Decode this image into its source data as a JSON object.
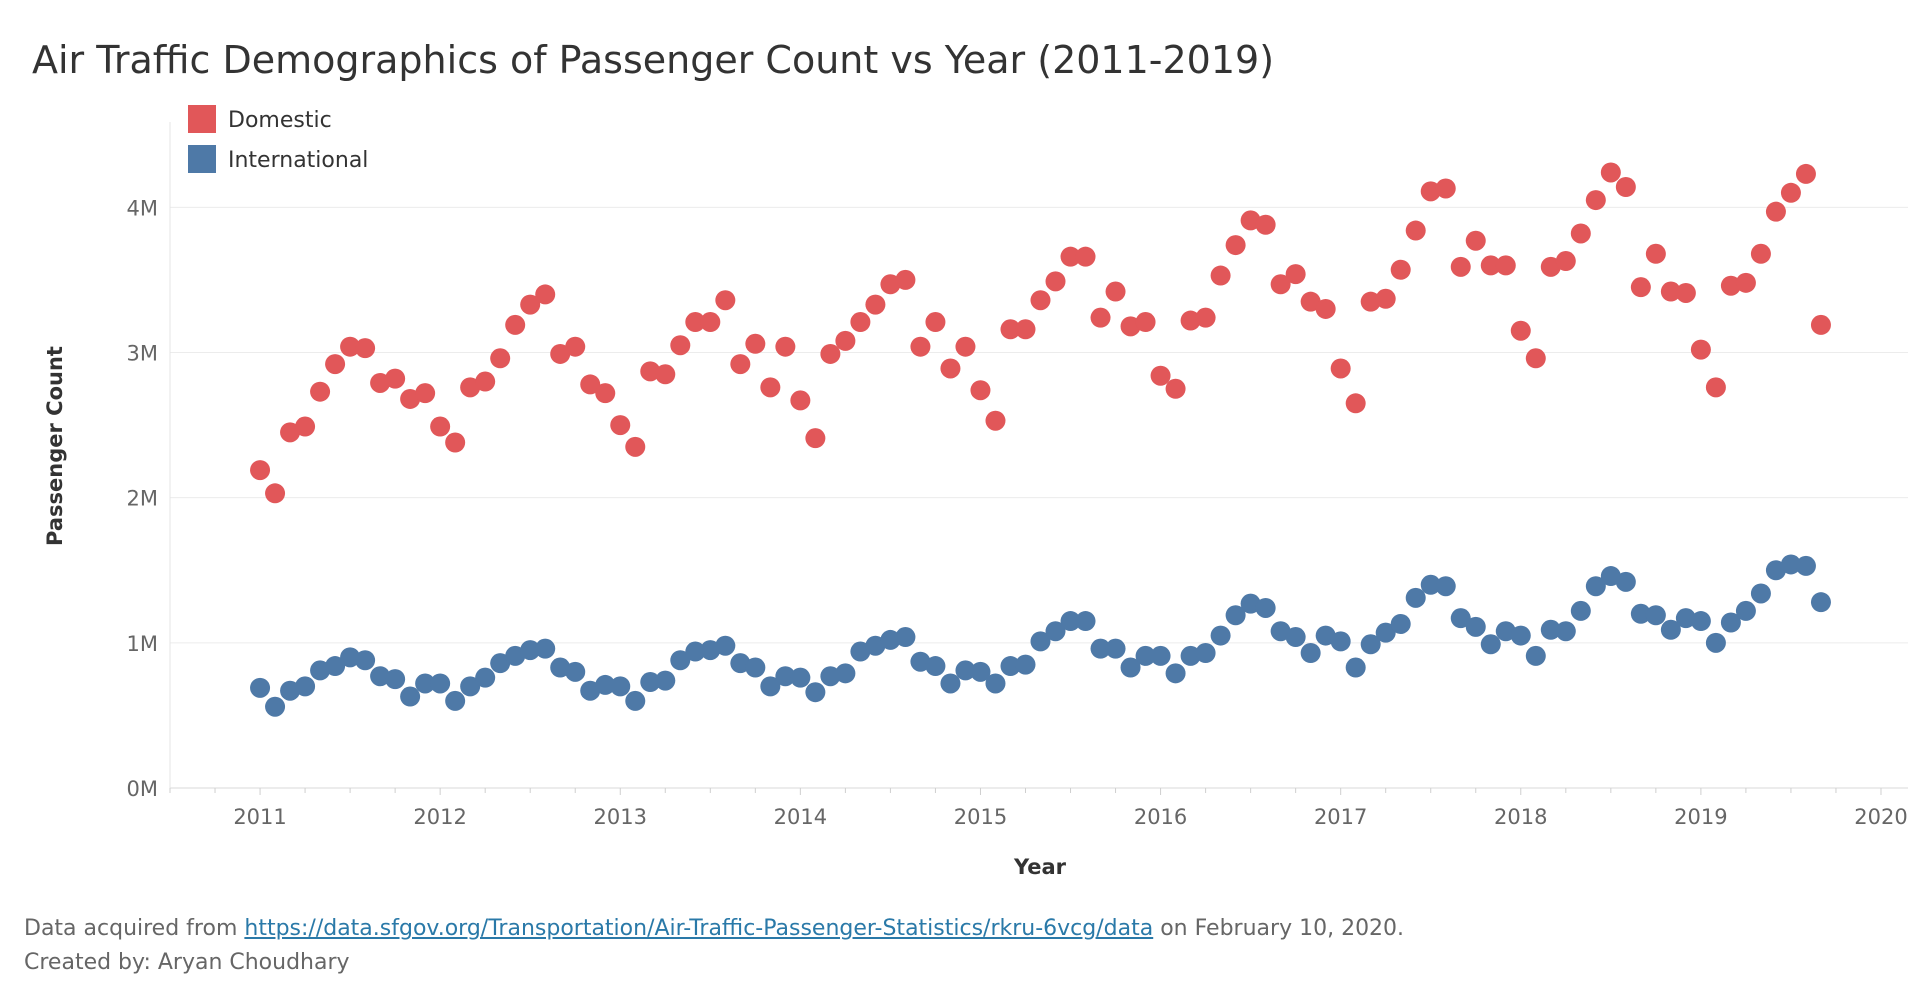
{
  "title": "Air Traffic Demographics of Passenger Count vs Year (2011-2019)",
  "footer": {
    "prefix": "Data acquired from ",
    "link_text": "https://data.sfgov.org/Transportation/Air-Traffic-Passenger-Statistics/rkru-6vcg/data",
    "suffix": " on February 10, 2020.",
    "credit": "Created by: Aryan Choudhary"
  },
  "chart_data": {
    "type": "scatter",
    "xlabel": "Year",
    "ylabel": "Passenger Count",
    "xlim": [
      2010.5,
      2020.15
    ],
    "ylim": [
      0,
      4.45
    ],
    "x_ticks": [
      2011,
      2012,
      2013,
      2014,
      2015,
      2016,
      2017,
      2018,
      2019,
      2020
    ],
    "x_tick_labels": [
      "2011",
      "2012",
      "2013",
      "2014",
      "2015",
      "2016",
      "2017",
      "2018",
      "2019",
      "2020"
    ],
    "y_ticks": [
      0,
      1,
      2,
      3,
      4
    ],
    "y_tick_labels": [
      "0M",
      "1M",
      "2M",
      "3M",
      "4M"
    ],
    "grid": "horizontal",
    "legend_position": "top-left",
    "x_start": "2011-01",
    "point_interval": "monthly",
    "series": [
      {
        "name": "Domestic",
        "color": "#e15759",
        "values": [
          2.19,
          2.03,
          2.45,
          2.49,
          2.73,
          2.92,
          3.04,
          3.03,
          2.79,
          2.82,
          2.68,
          2.72,
          2.49,
          2.38,
          2.76,
          2.8,
          2.96,
          3.19,
          3.33,
          3.4,
          2.99,
          3.04,
          2.78,
          2.72,
          2.5,
          2.35,
          2.87,
          2.85,
          3.05,
          3.21,
          3.21,
          3.36,
          2.92,
          3.06,
          2.76,
          3.04,
          2.67,
          2.41,
          2.99,
          3.08,
          3.21,
          3.33,
          3.47,
          3.5,
          3.04,
          3.21,
          2.89,
          3.04,
          2.74,
          2.53,
          3.16,
          3.16,
          3.36,
          3.49,
          3.66,
          3.66,
          3.24,
          3.42,
          3.18,
          3.21,
          2.84,
          2.75,
          3.22,
          3.24,
          3.53,
          3.74,
          3.91,
          3.88,
          3.47,
          3.54,
          3.35,
          3.3,
          2.89,
          2.65,
          3.35,
          3.37,
          3.57,
          3.84,
          4.11,
          4.13,
          3.59,
          3.77,
          3.6,
          3.6,
          3.15,
          2.96,
          3.59,
          3.63,
          3.82,
          4.05,
          4.24,
          4.14,
          3.45,
          3.68,
          3.42,
          3.41,
          3.02,
          2.76,
          3.46,
          3.48,
          3.68,
          3.97,
          4.1,
          4.23,
          3.19
        ]
      },
      {
        "name": "International",
        "color": "#4e79a7",
        "values": [
          0.69,
          0.56,
          0.67,
          0.7,
          0.81,
          0.84,
          0.9,
          0.88,
          0.77,
          0.75,
          0.63,
          0.72,
          0.72,
          0.6,
          0.7,
          0.76,
          0.86,
          0.91,
          0.95,
          0.96,
          0.83,
          0.8,
          0.67,
          0.71,
          0.7,
          0.6,
          0.73,
          0.74,
          0.88,
          0.94,
          0.95,
          0.98,
          0.86,
          0.83,
          0.7,
          0.77,
          0.76,
          0.66,
          0.77,
          0.79,
          0.94,
          0.98,
          1.02,
          1.04,
          0.87,
          0.84,
          0.72,
          0.81,
          0.8,
          0.72,
          0.84,
          0.85,
          1.01,
          1.08,
          1.15,
          1.15,
          0.96,
          0.96,
          0.83,
          0.91,
          0.91,
          0.79,
          0.91,
          0.93,
          1.05,
          1.19,
          1.27,
          1.24,
          1.08,
          1.04,
          0.93,
          1.05,
          1.01,
          0.83,
          0.99,
          1.07,
          1.13,
          1.31,
          1.4,
          1.39,
          1.17,
          1.11,
          0.99,
          1.08,
          1.05,
          0.91,
          1.09,
          1.08,
          1.22,
          1.39,
          1.46,
          1.42,
          1.2,
          1.19,
          1.09,
          1.17,
          1.15,
          1.0,
          1.14,
          1.22,
          1.34,
          1.5,
          1.54,
          1.53,
          1.28
        ]
      }
    ]
  }
}
